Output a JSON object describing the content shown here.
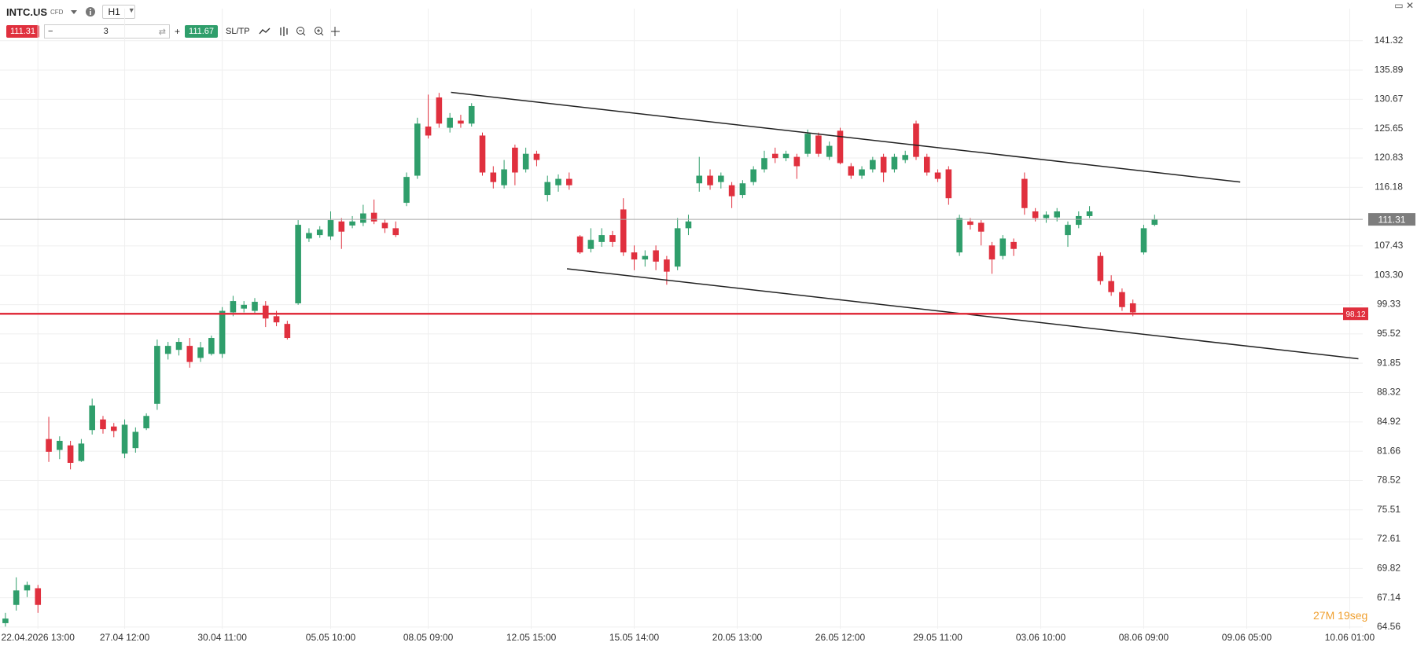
{
  "toolbar": {
    "symbol": "INTC.US",
    "instrument_type": "CFD",
    "timeframe": "H1",
    "sell_price": "111.31",
    "volume": "3",
    "buy_price": "111.67",
    "sltp": "SL/TP"
  },
  "timer": "27M 19seg",
  "chart_data": {
    "type": "candlestick",
    "log": true,
    "grid": true,
    "ylim": [
      64.42,
      147.5
    ],
    "yticks": [
      141.32,
      135.89,
      130.67,
      125.65,
      120.83,
      116.18,
      107.43,
      {
        "value": 103.3,
        "label": "103.30"
      },
      99.33,
      95.52,
      91.85,
      88.32,
      84.92,
      81.66,
      78.52,
      75.51,
      72.61,
      69.82,
      67.14,
      64.56
    ],
    "xlim": [
      -0.5,
      125.2
    ],
    "xticks": [
      {
        "value": 3,
        "label": "22.04.2026 13:00"
      },
      {
        "value": 11,
        "label": "27.04 12:00"
      },
      {
        "value": 20,
        "label": "30.04 11:00"
      },
      {
        "value": 30,
        "label": "05.05 10:00"
      },
      {
        "value": 39,
        "label": "08.05 09:00"
      },
      {
        "value": 48.5,
        "label": "12.05 15:00"
      },
      {
        "value": 58,
        "label": "15.05 14:00"
      },
      {
        "value": 67.5,
        "label": "20.05 13:00"
      },
      {
        "value": 77,
        "label": "26.05 12:00"
      },
      {
        "value": 86,
        "label": "29.05 11:00"
      },
      {
        "value": 95.5,
        "label": "03.06 10:00"
      },
      {
        "value": 105,
        "label": "08.06 09:00"
      },
      {
        "value": 114.5,
        "label": "09.06 05:00"
      },
      {
        "value": 124,
        "label": "10.06 01:00"
      }
    ],
    "series": [
      {
        "up_color": "#2f9e6b",
        "down_color": "#e0303e",
        "open": [
          64.9,
          66.5,
          67.8,
          68.0,
          83.0,
          81.8,
          82.3,
          80.6,
          84.0,
          85.2,
          84.4,
          81.4,
          82.0,
          84.2,
          87.0,
          93.0,
          93.5,
          94.0,
          92.5,
          93.0,
          93.0,
          98.3,
          98.8,
          98.5,
          99.2,
          97.8,
          96.8,
          99.5,
          108.5,
          109.0,
          108.8,
          111.0,
          110.4,
          110.8,
          112.3,
          110.8,
          110.0,
          113.8,
          118.0,
          126.0,
          131.0,
          125.8,
          127.0,
          126.5,
          124.5,
          118.5,
          116.5,
          122.5,
          119.0,
          121.5,
          115.0,
          116.5,
          117.5,
          108.8,
          107.0,
          108.0,
          109.0,
          112.8,
          106.5,
          105.5,
          106.8,
          105.5,
          104.5,
          110.0,
          116.8,
          118.0,
          117.0,
          116.5,
          115.0,
          117.0,
          119.0,
          121.5,
          120.8,
          121.0,
          121.5,
          124.5,
          121.0,
          125.3,
          119.5,
          118.0,
          119.0,
          121.0,
          119.0,
          120.5,
          126.5,
          121.0,
          118.5,
          119.0,
          106.5,
          111.0,
          110.8,
          107.5,
          106.0,
          108.0,
          117.5,
          112.5,
          111.5,
          111.6,
          109.0,
          110.5,
          111.8,
          106.0,
          102.5,
          101.0,
          99.5,
          106.5,
          110.5
        ],
        "high": [
          65.8,
          69.0,
          68.6,
          68.3,
          85.5,
          83.3,
          82.8,
          83.0,
          87.6,
          85.6,
          84.8,
          85.2,
          84.3,
          85.9,
          94.8,
          94.5,
          95.0,
          95.0,
          94.5,
          95.3,
          99.0,
          100.5,
          99.8,
          100.2,
          99.8,
          98.5,
          97.2,
          111.2,
          110.0,
          110.3,
          112.5,
          111.5,
          111.8,
          113.5,
          114.3,
          111.3,
          111.0,
          118.5,
          127.5,
          131.5,
          131.8,
          128.3,
          128.0,
          130.0,
          125.0,
          119.5,
          120.5,
          123.0,
          122.5,
          122.0,
          118.0,
          118.2,
          118.5,
          109.0,
          110.0,
          110.0,
          109.6,
          114.5,
          107.5,
          106.8,
          107.5,
          106.0,
          111.5,
          112.0,
          121.0,
          119.0,
          118.5,
          117.0,
          117.3,
          119.5,
          122.0,
          122.5,
          122.0,
          121.5,
          125.5,
          125.0,
          123.5,
          125.8,
          120.0,
          119.5,
          121.0,
          121.5,
          121.5,
          122.0,
          127.0,
          121.5,
          119.0,
          119.5,
          112.0,
          111.5,
          111.2,
          108.0,
          109.0,
          108.5,
          118.5,
          113.0,
          112.5,
          113.0,
          111.0,
          112.5,
          113.3,
          106.5,
          103.3,
          101.5,
          100.0,
          110.5,
          112.0
        ],
        "low": [
          64.6,
          66.0,
          67.2,
          65.8,
          80.5,
          80.8,
          79.7,
          80.5,
          83.5,
          83.6,
          83.2,
          80.9,
          81.5,
          84.0,
          86.3,
          92.3,
          92.8,
          91.3,
          92.0,
          92.8,
          92.5,
          97.8,
          98.3,
          98.0,
          96.4,
          96.5,
          94.8,
          99.3,
          108.0,
          108.6,
          108.3,
          107.0,
          110.0,
          110.3,
          110.6,
          109.3,
          108.7,
          113.3,
          117.5,
          124.0,
          125.8,
          125.0,
          125.8,
          126.0,
          118.0,
          116.0,
          116.0,
          116.5,
          118.5,
          119.5,
          114.0,
          115.5,
          115.8,
          106.3,
          106.5,
          107.3,
          107.3,
          106.0,
          104.0,
          104.5,
          104.0,
          102.0,
          104.0,
          109.0,
          115.5,
          115.8,
          116.0,
          113.0,
          114.5,
          116.5,
          118.5,
          120.0,
          120.3,
          117.5,
          121.0,
          121.0,
          120.5,
          119.8,
          117.5,
          117.5,
          118.5,
          117.0,
          118.5,
          120.0,
          120.5,
          118.0,
          117.0,
          113.5,
          106.0,
          109.8,
          107.5,
          103.5,
          105.5,
          106.0,
          112.0,
          111.0,
          110.8,
          111.0,
          107.3,
          110.0,
          111.5,
          102.0,
          100.5,
          98.5,
          97.8,
          106.2,
          110.3
        ],
        "close": [
          65.3,
          67.8,
          68.3,
          66.5,
          81.6,
          82.8,
          80.4,
          82.5,
          86.8,
          84.1,
          83.9,
          84.6,
          83.8,
          85.6,
          94.0,
          94.0,
          94.5,
          92.0,
          93.8,
          95.0,
          98.5,
          99.8,
          99.3,
          99.7,
          97.5,
          97.0,
          95.0,
          110.5,
          109.3,
          109.8,
          111.2,
          109.5,
          111.0,
          112.2,
          111.0,
          110.0,
          109.0,
          117.8,
          126.5,
          124.5,
          126.5,
          127.5,
          126.5,
          129.5,
          118.5,
          117.0,
          119.0,
          118.5,
          121.5,
          120.5,
          117.0,
          117.5,
          116.5,
          106.5,
          108.3,
          109.0,
          108.0,
          106.5,
          105.5,
          106.0,
          105.2,
          103.8,
          110.0,
          111.0,
          118.0,
          116.5,
          118.0,
          114.8,
          116.8,
          119.0,
          120.8,
          120.8,
          121.5,
          119.5,
          124.8,
          121.5,
          122.8,
          120.0,
          118.0,
          119.0,
          120.5,
          118.5,
          121.0,
          121.3,
          121.0,
          118.5,
          117.5,
          114.5,
          111.5,
          110.5,
          109.5,
          105.5,
          108.5,
          107.0,
          113.0,
          111.5,
          112.0,
          112.5,
          110.5,
          111.8,
          112.5,
          102.5,
          101.0,
          99.0,
          98.3,
          110.0,
          111.3
        ]
      }
    ],
    "price_lines": [
      {
        "value": 111.31,
        "color": "#a9a9a9",
        "label_color": "#7d7d7d"
      },
      {
        "value": 98.12,
        "color": "#e0303e",
        "label_color": "#e0303e"
      }
    ],
    "trendlines": [
      {
        "x": [
          41.1,
          113.9
        ],
        "y": [
          131.9,
          117.0
        ],
        "color": "#222222"
      },
      {
        "x": [
          51.8,
          124.8
        ],
        "y": [
          104.2,
          92.4
        ],
        "color": "#222222"
      }
    ]
  }
}
